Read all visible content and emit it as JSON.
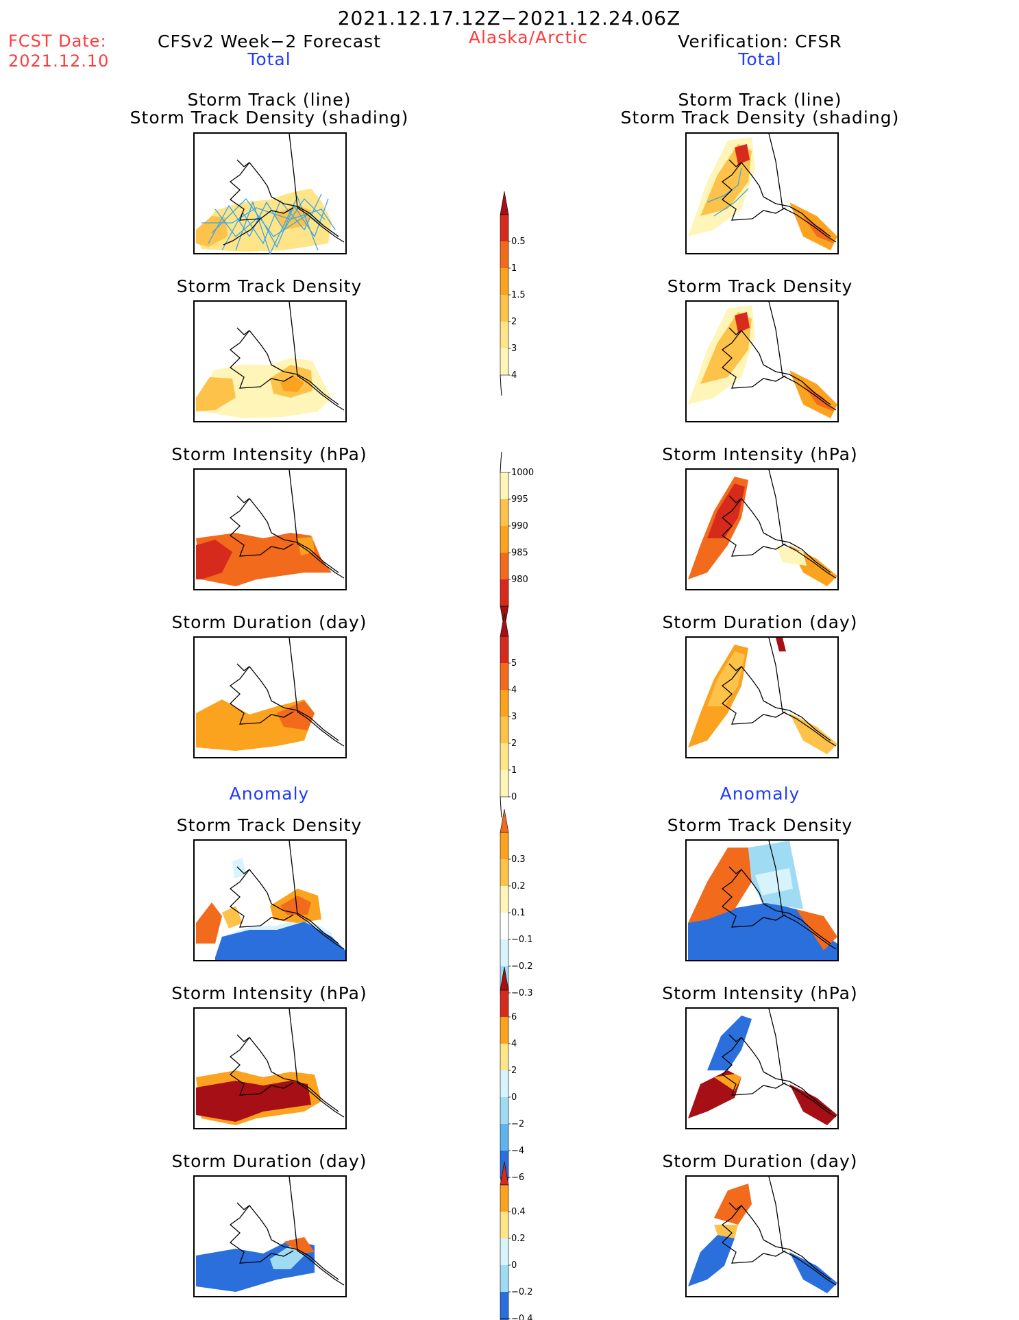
{
  "header": {
    "period": "2021.12.17.12Z−2021.12.24.06Z",
    "fcst_label": "FCST Date:",
    "fcst_date": "2021.12.10",
    "left_title": "CFSv2 Week−2 Forecast",
    "region": "Alaska/Arctic",
    "right_title": "Verification: CFSR",
    "left_sub": "Total",
    "right_sub": "Total"
  },
  "sections": {
    "anomaly_left": "Anomaly",
    "anomaly_right": "Anomaly"
  },
  "panel_titles": {
    "track_line": "Storm Track (line)",
    "track_density_shading": "Storm Track Density (shading)",
    "track_density": "Storm Track Density",
    "intensity": "Storm Intensity (hPa)",
    "duration": "Storm Duration (day)"
  },
  "colors": {
    "title_red": "#ff3b3b",
    "subtitle_blue": "#1f3bff",
    "warm": [
      "#fff5b8",
      "#ffe488",
      "#fdc24a",
      "#fba31e",
      "#f26a1b",
      "#d62b1c",
      "#a50f15"
    ],
    "cool": [
      "#d7f3fb",
      "#9fdcf4",
      "#5fb4ee",
      "#2a6fdc"
    ],
    "track_line": "#35a6f0"
  },
  "chart_data": [
    {
      "type": "colorbar",
      "name": "Storm Track Density (total)",
      "levels": [
        "0.5",
        "1",
        "1.5",
        "2",
        "3",
        "4"
      ]
    },
    {
      "type": "colorbar",
      "name": "Storm Intensity (hPa) (total)",
      "levels": [
        "1000",
        "995",
        "990",
        "985",
        "980"
      ]
    },
    {
      "type": "colorbar",
      "name": "Storm Duration (day) (total)",
      "levels": [
        "5",
        "4",
        "3",
        "2",
        "1",
        "0"
      ]
    },
    {
      "type": "colorbar",
      "name": "Storm Track Density (anomaly)",
      "levels": [
        "0.3",
        "0.2",
        "0.1",
        "−0.1",
        "−0.2",
        "−0.3"
      ]
    },
    {
      "type": "colorbar",
      "name": "Storm Intensity (hPa) (anomaly)",
      "levels": [
        "6",
        "4",
        "2",
        "0",
        "−2",
        "−4",
        "−6"
      ]
    },
    {
      "type": "colorbar",
      "name": "Storm Duration (day) (anomaly)",
      "levels": [
        "0.4",
        "0.2",
        "0",
        "−0.2",
        "−0.4"
      ]
    }
  ]
}
